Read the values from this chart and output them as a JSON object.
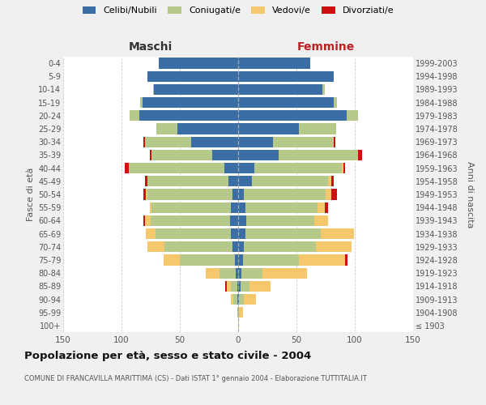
{
  "age_groups": [
    "100+",
    "95-99",
    "90-94",
    "85-89",
    "80-84",
    "75-79",
    "70-74",
    "65-69",
    "60-64",
    "55-59",
    "50-54",
    "45-49",
    "40-44",
    "35-39",
    "30-34",
    "25-29",
    "20-24",
    "15-19",
    "10-14",
    "5-9",
    "0-4"
  ],
  "birth_years": [
    "≤ 1903",
    "1904-1908",
    "1909-1913",
    "1914-1918",
    "1919-1923",
    "1924-1928",
    "1929-1933",
    "1934-1938",
    "1939-1943",
    "1944-1948",
    "1949-1953",
    "1954-1958",
    "1959-1963",
    "1964-1968",
    "1969-1973",
    "1974-1978",
    "1979-1983",
    "1984-1988",
    "1989-1993",
    "1994-1998",
    "1999-2003"
  ],
  "colors": {
    "celibi": "#3a6ea5",
    "coniugati": "#b5c98a",
    "vedovi": "#f5c86e",
    "divorziati": "#cc1111"
  },
  "males": {
    "celibi": [
      0,
      0,
      1,
      1,
      2,
      3,
      5,
      6,
      7,
      6,
      5,
      8,
      12,
      22,
      40,
      52,
      85,
      82,
      72,
      78,
      68
    ],
    "coniugati": [
      0,
      1,
      3,
      5,
      14,
      47,
      58,
      65,
      68,
      68,
      73,
      70,
      82,
      52,
      40,
      18,
      8,
      2,
      1,
      0,
      0
    ],
    "vedovi": [
      0,
      0,
      2,
      4,
      12,
      14,
      15,
      8,
      5,
      2,
      1,
      0,
      0,
      0,
      0,
      0,
      0,
      0,
      0,
      0,
      0
    ],
    "divorziati": [
      0,
      0,
      0,
      1,
      0,
      0,
      0,
      0,
      1,
      0,
      2,
      2,
      3,
      2,
      1,
      0,
      0,
      0,
      0,
      0,
      0
    ]
  },
  "females": {
    "celibi": [
      0,
      0,
      1,
      2,
      3,
      4,
      5,
      6,
      7,
      6,
      5,
      12,
      14,
      35,
      30,
      52,
      93,
      82,
      72,
      82,
      62
    ],
    "coniugati": [
      0,
      1,
      4,
      8,
      18,
      48,
      62,
      65,
      58,
      62,
      70,
      65,
      75,
      68,
      52,
      32,
      10,
      3,
      2,
      0,
      0
    ],
    "vedovi": [
      1,
      3,
      10,
      18,
      38,
      40,
      30,
      28,
      12,
      6,
      5,
      3,
      1,
      0,
      0,
      0,
      0,
      0,
      0,
      0,
      0
    ],
    "divorziati": [
      0,
      0,
      0,
      0,
      0,
      2,
      0,
      0,
      0,
      3,
      5,
      2,
      2,
      3,
      1,
      0,
      0,
      0,
      0,
      0,
      0
    ]
  },
  "title": "Popolazione per età, sesso e stato civile - 2004",
  "subtitle": "COMUNE DI FRANCAVILLA MARITTIMA (CS) - Dati ISTAT 1° gennaio 2004 - Elaborazione TUTTITALIA.IT",
  "xlabel_left": "Maschi",
  "xlabel_right": "Femmine",
  "ylabel_left": "Fasce di età",
  "ylabel_right": "Anni di nascita",
  "xlim": 150,
  "bg_color": "#f0f0f0",
  "plot_bg": "#ffffff",
  "legend_labels": [
    "Celibi/Nubili",
    "Coniugati/e",
    "Vedovi/e",
    "Divorziati/e"
  ],
  "grid_color": "#cccccc"
}
